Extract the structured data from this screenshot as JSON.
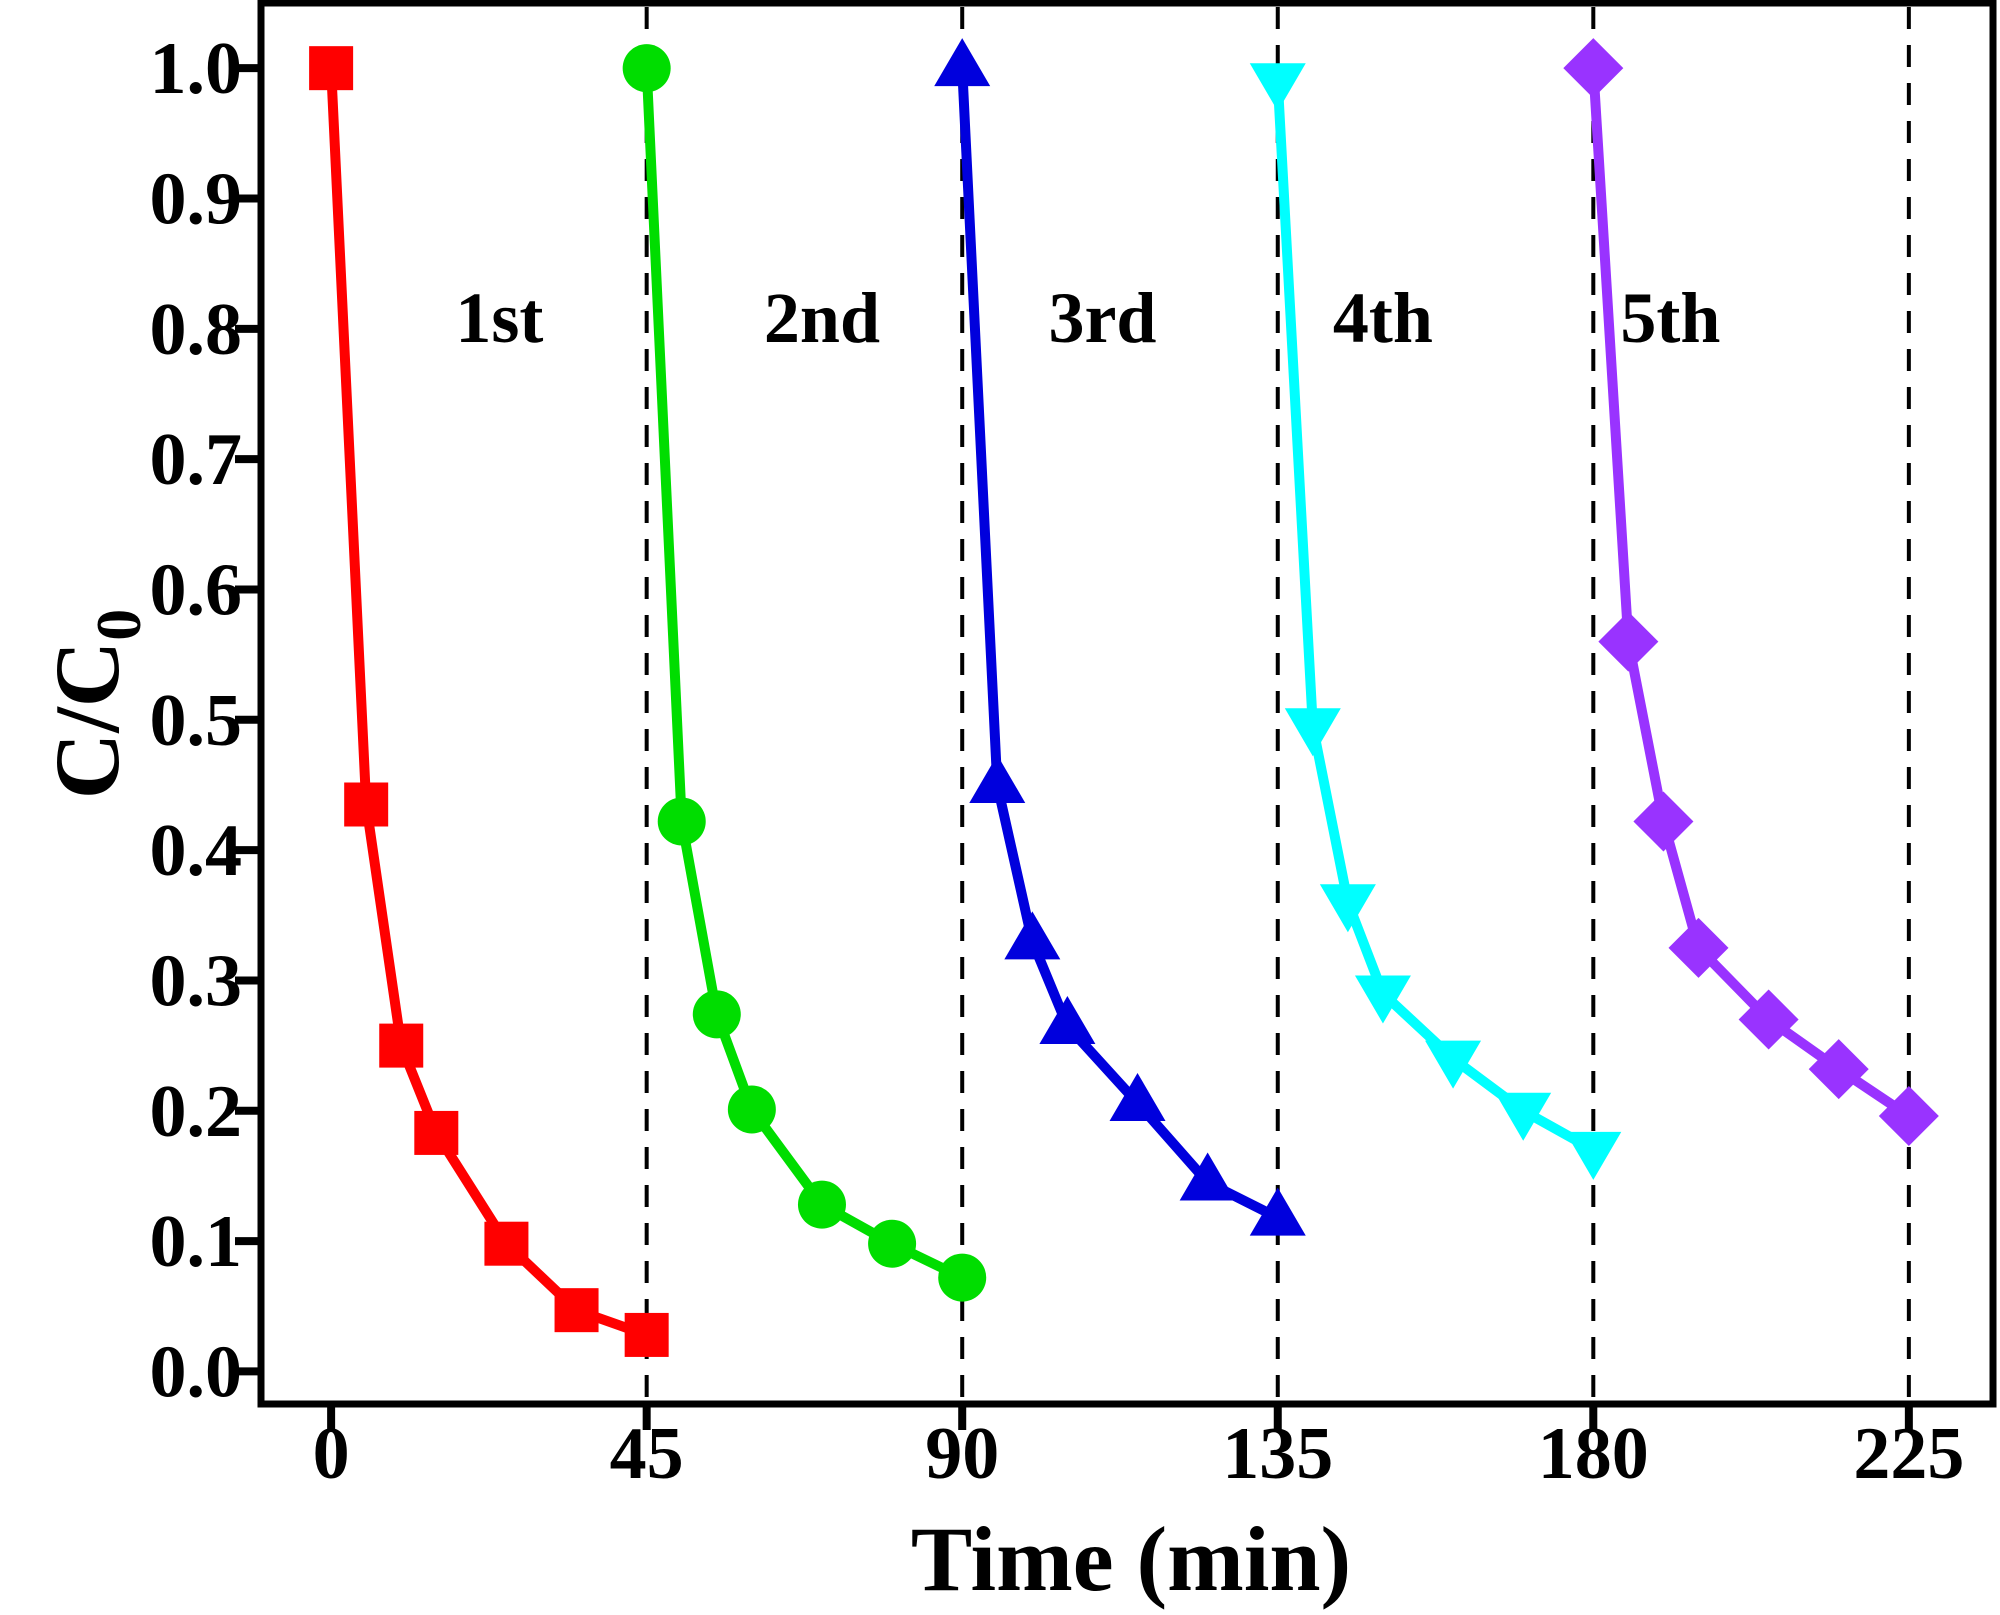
{
  "chart_data": {
    "type": "line",
    "title": "",
    "xlabel": "Time (min)",
    "ylabel_main": "C/C",
    "ylabel_sub": "0",
    "xlim": [
      -10,
      237
    ],
    "ylim": [
      -0.025,
      1.05
    ],
    "xticks": [
      0,
      45,
      90,
      135,
      180,
      225
    ],
    "xtick_labels": [
      "0",
      "45",
      "90",
      "135",
      "180",
      "225"
    ],
    "yticks": [
      0.0,
      0.1,
      0.2,
      0.3,
      0.4,
      0.5,
      0.6,
      0.7,
      0.8,
      0.9,
      1.0
    ],
    "ytick_labels": [
      "0.0",
      "0.1",
      "0.2",
      "0.3",
      "0.4",
      "0.5",
      "0.6",
      "0.7",
      "0.8",
      "0.9",
      "1.0"
    ],
    "dashed_vlines": [
      45,
      90,
      135,
      180,
      225
    ],
    "grid": false,
    "annotations": [
      {
        "text": "1st",
        "x": 24,
        "y": 0.79
      },
      {
        "text": "2nd",
        "x": 70,
        "y": 0.79
      },
      {
        "text": "3rd",
        "x": 110,
        "y": 0.79
      },
      {
        "text": "4th",
        "x": 150,
        "y": 0.79
      },
      {
        "text": "5th",
        "x": 191,
        "y": 0.79
      }
    ],
    "series": [
      {
        "name": "1st",
        "color": "#ff0000",
        "marker": "square",
        "x": [
          0,
          5,
          10,
          15,
          25,
          35,
          45
        ],
        "y": [
          1.0,
          0.435,
          0.25,
          0.183,
          0.098,
          0.047,
          0.028
        ]
      },
      {
        "name": "2nd",
        "color": "#00dd00",
        "marker": "circle",
        "x": [
          45,
          50,
          55,
          60,
          70,
          80,
          90
        ],
        "y": [
          1.0,
          0.422,
          0.274,
          0.201,
          0.128,
          0.098,
          0.072
        ]
      },
      {
        "name": "3rd",
        "color": "#0000dd",
        "marker": "triangle-up",
        "x": [
          90,
          95,
          100,
          105,
          115,
          125,
          135
        ],
        "y": [
          1.0,
          0.45,
          0.33,
          0.265,
          0.206,
          0.145,
          0.118
        ]
      },
      {
        "name": "4th",
        "color": "#00ffff",
        "marker": "triangle-down",
        "x": [
          135,
          140,
          145,
          150,
          160,
          170,
          180
        ],
        "y": [
          0.99,
          0.495,
          0.36,
          0.29,
          0.24,
          0.2,
          0.17
        ]
      },
      {
        "name": "5th",
        "color": "#9933ff",
        "marker": "diamond",
        "x": [
          180,
          185,
          190,
          195,
          205,
          215,
          225
        ],
        "y": [
          1.0,
          0.56,
          0.422,
          0.325,
          0.27,
          0.232,
          0.196
        ]
      }
    ]
  }
}
